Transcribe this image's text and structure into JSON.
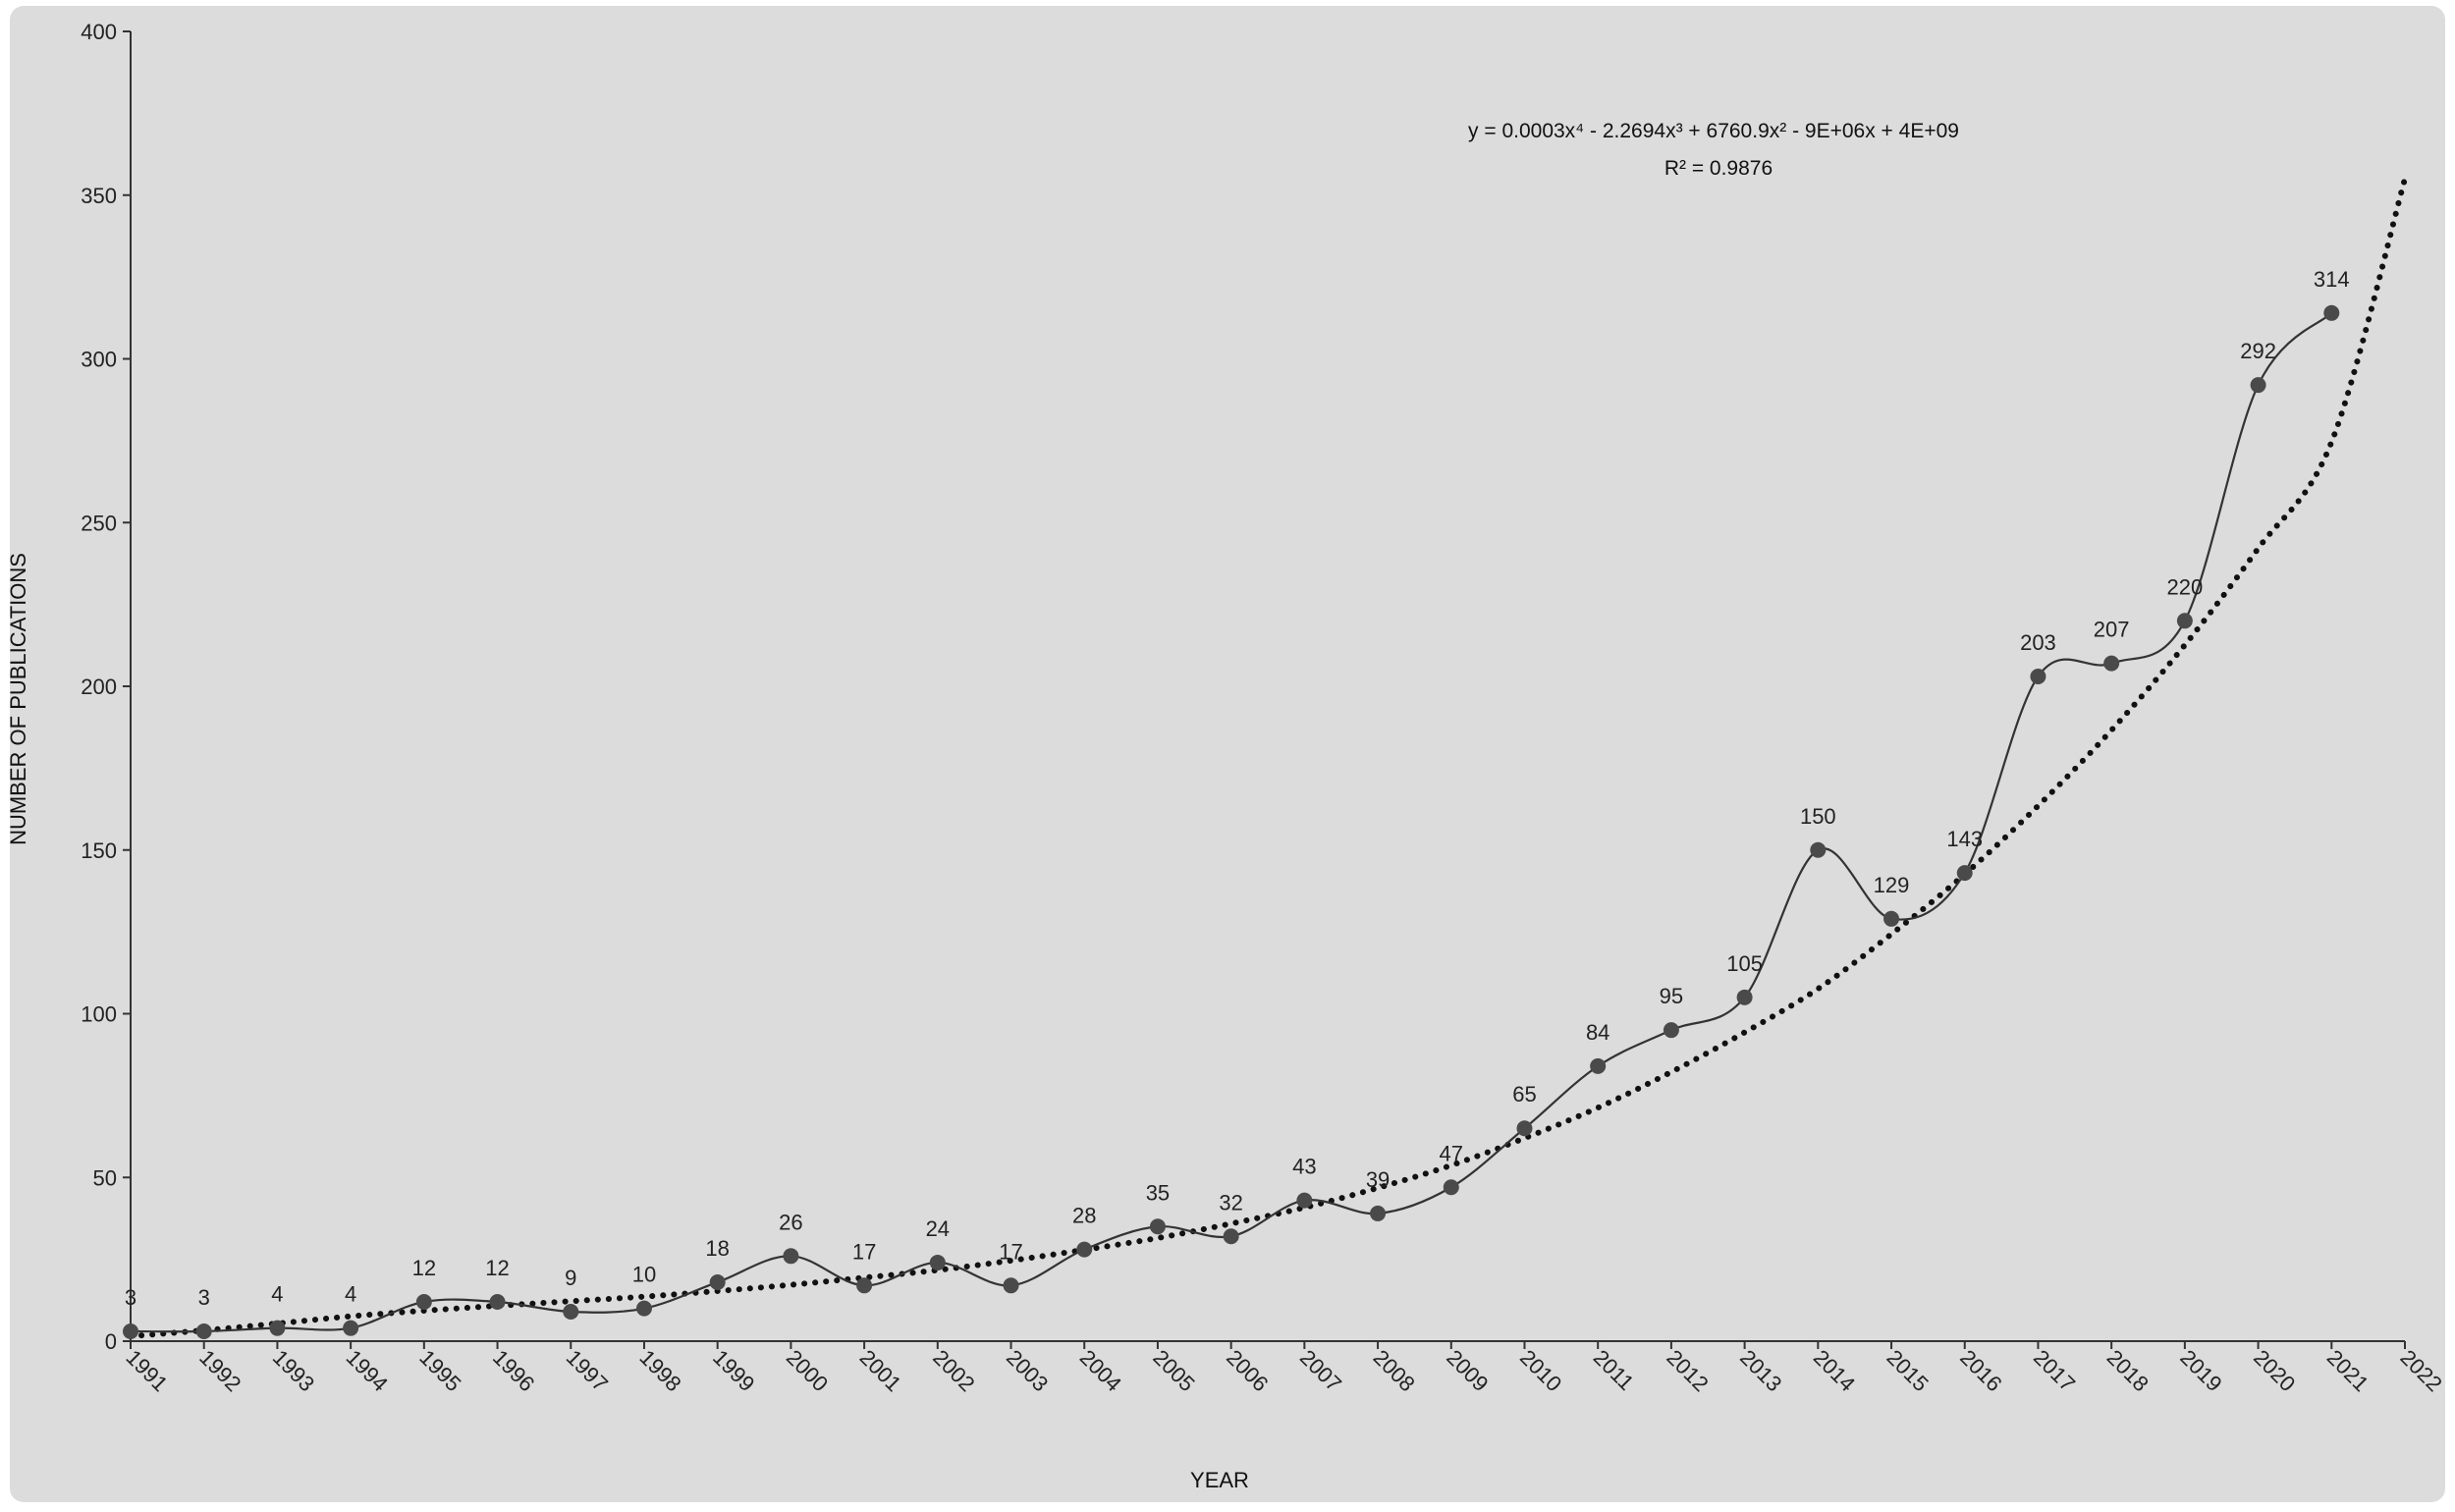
{
  "chart_data": {
    "type": "line",
    "title": "",
    "xlabel": "YEAR",
    "ylabel": "NUMBER  OF PUBLICATIONS",
    "x": [
      1991,
      1992,
      1993,
      1994,
      1995,
      1996,
      1997,
      1998,
      1999,
      2000,
      2001,
      2002,
      2003,
      2004,
      2005,
      2006,
      2007,
      2008,
      2009,
      2010,
      2011,
      2012,
      2013,
      2014,
      2015,
      2016,
      2017,
      2018,
      2019,
      2020,
      2021
    ],
    "x_ticks": [
      "1991",
      "1992",
      "1993",
      "1994",
      "1995",
      "1996",
      "1997",
      "1998",
      "1999",
      "2000",
      "2001",
      "2002",
      "2003",
      "2004",
      "2005",
      "2006",
      "2007",
      "2008",
      "2009",
      "2010",
      "2011",
      "2012",
      "2013",
      "2014",
      "2015",
      "2016",
      "2017",
      "2018",
      "2019",
      "2020",
      "2021",
      "2022"
    ],
    "xlim": [
      1991,
      2022
    ],
    "ylim": [
      0,
      400
    ],
    "y_ticks": [
      "0",
      "50",
      "100",
      "150",
      "200",
      "250",
      "300",
      "350",
      "400"
    ],
    "series": [
      {
        "values": [
          3,
          3,
          4,
          4,
          12,
          12,
          9,
          10,
          18,
          26,
          17,
          24,
          17,
          28,
          35,
          32,
          43,
          39,
          47,
          65,
          84,
          95,
          105,
          150,
          129,
          143,
          203,
          207,
          220,
          292,
          314
        ],
        "labels": [
          "3",
          "3",
          "4",
          "4",
          "12",
          "12",
          "9",
          "10",
          "18",
          "26",
          "17",
          "24",
          "17",
          "28",
          "35",
          "32",
          "43",
          "39",
          "47",
          "65",
          "84",
          "95",
          "105",
          "150",
          "129",
          "143",
          "203",
          "207",
          "220",
          "292",
          "314"
        ],
        "line_style": "smooth-solid",
        "color": "#333333",
        "marker_color": "#4a4a4a"
      }
    ],
    "trendline": {
      "type": "polynomial",
      "order": 4,
      "style": "dotted",
      "color": "#111111",
      "equation": "y = 0.0003x⁴ - 2.2694x³ + 6760.9x² - 9E+06x + 4E+09",
      "r_squared": "R² = 0.9876",
      "values": [
        1.5,
        3.3,
        5.4,
        7.6,
        9.3,
        10.8,
        12.2,
        13.6,
        15.3,
        17.2,
        19.4,
        21.7,
        24.6,
        27.9,
        31.5,
        35.9,
        40.8,
        46.8,
        53.7,
        62.0,
        71.3,
        82.2,
        94.3,
        107.6,
        124.3,
        142.6,
        163.5,
        186.6,
        212.6,
        242.1,
        274.6,
        355.0
      ]
    },
    "grid": false,
    "legend": "none",
    "plot_background": "#dcdcdc"
  }
}
